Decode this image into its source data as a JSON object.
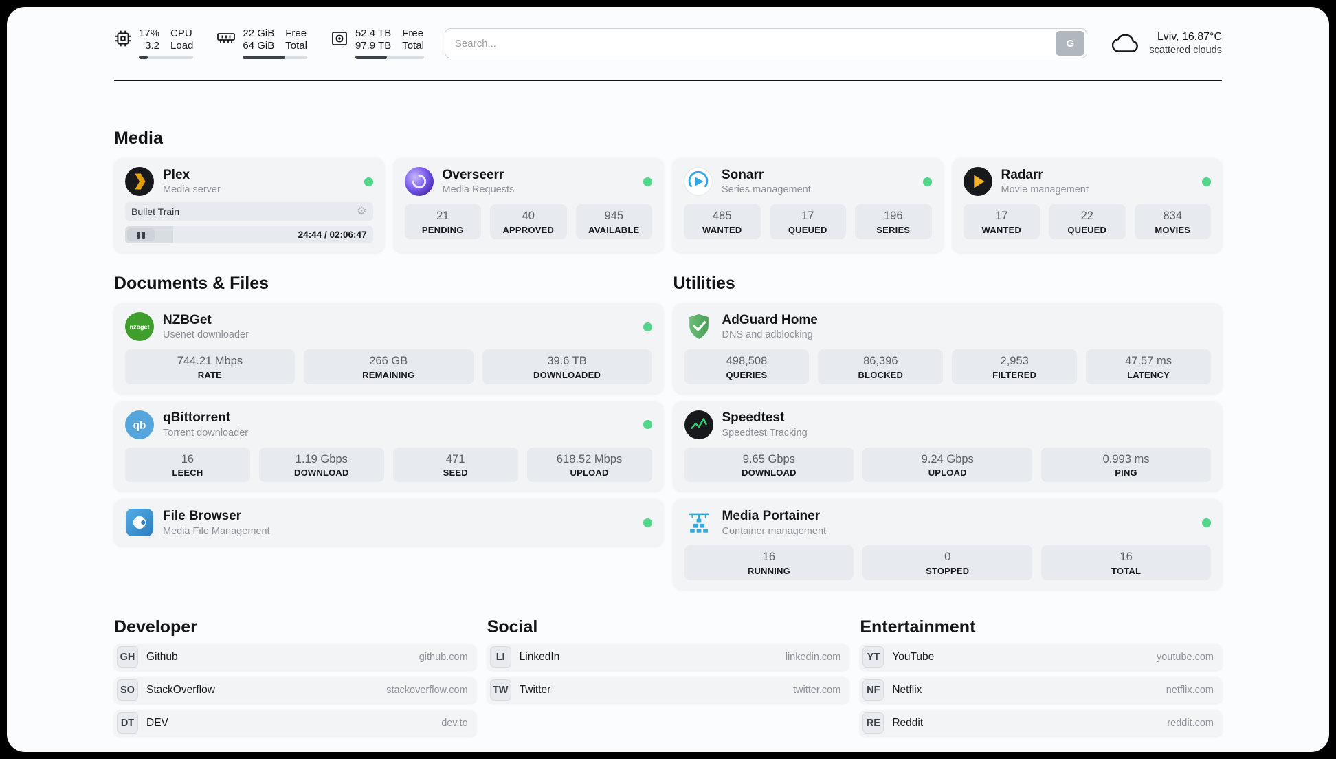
{
  "colors": {
    "online_dot": "#52d689",
    "page_background": "#fbfcfd",
    "card_background": "#f2f4f6",
    "stat_background": "#e7eaee",
    "plex_gold": "#e5a00d",
    "overseerr_purple": "#7b5cf0",
    "sonarr_blue": "#30a7e0",
    "radarr_amber": "#f7b32b",
    "nzbget_green": "#3f9e2c",
    "qbittorrent_blue": "#56a5dc",
    "adguard_green": "#4b9f58",
    "speedtest_green": "#2ecc71",
    "filebrowser_blue": "#2b7cc0",
    "portainer_blue": "#37a8dc"
  },
  "icons": {
    "gear": "⚙",
    "nzbget_text": "nzbget",
    "qbittorrent_text": "qb"
  },
  "header": {
    "cpu": {
      "value_top": "17%",
      "value_bottom": "3.2",
      "label_top": "CPU",
      "label_bottom": "Load",
      "progress_pct": 17
    },
    "ram": {
      "value_top": "22 GiB",
      "value_bottom": "64 GiB",
      "label_top": "Free",
      "label_bottom": "Total",
      "progress_pct": 66
    },
    "disk": {
      "value_top": "52.4 TB",
      "value_bottom": "97.9 TB",
      "label_top": "Free",
      "label_bottom": "Total",
      "progress_pct": 46
    },
    "search": {
      "placeholder": "Search...",
      "button_label": "G"
    },
    "weather": {
      "location": "Lviv, 16.87°C",
      "condition": "scattered clouds"
    }
  },
  "media": {
    "title": "Media",
    "plex": {
      "name": "Plex",
      "subtitle": "Media server",
      "now_playing": "Bullet Train",
      "time": "24:44 / 02:06:47",
      "progress_pct": 19.5
    },
    "overseerr": {
      "name": "Overseerr",
      "subtitle": "Media Requests",
      "stats": [
        {
          "value": "21",
          "label": "PENDING"
        },
        {
          "value": "40",
          "label": "APPROVED"
        },
        {
          "value": "945",
          "label": "AVAILABLE"
        }
      ]
    },
    "sonarr": {
      "name": "Sonarr",
      "subtitle": "Series management",
      "stats": [
        {
          "value": "485",
          "label": "WANTED"
        },
        {
          "value": "17",
          "label": "QUEUED"
        },
        {
          "value": "196",
          "label": "SERIES"
        }
      ]
    },
    "radarr": {
      "name": "Radarr",
      "subtitle": "Movie management",
      "stats": [
        {
          "value": "17",
          "label": "WANTED"
        },
        {
          "value": "22",
          "label": "QUEUED"
        },
        {
          "value": "834",
          "label": "MOVIES"
        }
      ]
    }
  },
  "documents": {
    "title": "Documents & Files",
    "nzbget": {
      "name": "NZBGet",
      "subtitle": "Usenet downloader",
      "stats": [
        {
          "value": "744.21 Mbps",
          "label": "RATE"
        },
        {
          "value": "266 GB",
          "label": "REMAINING"
        },
        {
          "value": "39.6 TB",
          "label": "DOWNLOADED"
        }
      ]
    },
    "qbittorrent": {
      "name": "qBittorrent",
      "subtitle": "Torrent downloader",
      "stats": [
        {
          "value": "16",
          "label": "LEECH"
        },
        {
          "value": "1.19 Gbps",
          "label": "DOWNLOAD"
        },
        {
          "value": "471",
          "label": "SEED"
        },
        {
          "value": "618.52 Mbps",
          "label": "UPLOAD"
        }
      ]
    },
    "filebrowser": {
      "name": "File Browser",
      "subtitle": "Media File Management"
    }
  },
  "utilities": {
    "title": "Utilities",
    "adguard": {
      "name": "AdGuard Home",
      "subtitle": "DNS and adblocking",
      "stats": [
        {
          "value": "498,508",
          "label": "QUERIES"
        },
        {
          "value": "86,396",
          "label": "BLOCKED"
        },
        {
          "value": "2,953",
          "label": "FILTERED"
        },
        {
          "value": "47.57 ms",
          "label": "LATENCY"
        }
      ]
    },
    "speedtest": {
      "name": "Speedtest",
      "subtitle": "Speedtest Tracking",
      "stats": [
        {
          "value": "9.65 Gbps",
          "label": "DOWNLOAD"
        },
        {
          "value": "9.24 Gbps",
          "label": "UPLOAD"
        },
        {
          "value": "0.993 ms",
          "label": "PING"
        }
      ]
    },
    "portainer": {
      "name": "Media Portainer",
      "subtitle": "Container management",
      "stats": [
        {
          "value": "16",
          "label": "RUNNING"
        },
        {
          "value": "0",
          "label": "STOPPED"
        },
        {
          "value": "16",
          "label": "TOTAL"
        }
      ]
    }
  },
  "bookmarks": [
    {
      "title": "Developer",
      "links": [
        {
          "abbr": "GH",
          "name": "Github",
          "url": "github.com"
        },
        {
          "abbr": "SO",
          "name": "StackOverflow",
          "url": "stackoverflow.com"
        },
        {
          "abbr": "DT",
          "name": "DEV",
          "url": "dev.to"
        }
      ]
    },
    {
      "title": "Social",
      "links": [
        {
          "abbr": "LI",
          "name": "LinkedIn",
          "url": "linkedin.com"
        },
        {
          "abbr": "TW",
          "name": "Twitter",
          "url": "twitter.com"
        }
      ]
    },
    {
      "title": "Entertainment",
      "links": [
        {
          "abbr": "YT",
          "name": "YouTube",
          "url": "youtube.com"
        },
        {
          "abbr": "NF",
          "name": "Netflix",
          "url": "netflix.com"
        },
        {
          "abbr": "RE",
          "name": "Reddit",
          "url": "reddit.com"
        }
      ]
    }
  ]
}
